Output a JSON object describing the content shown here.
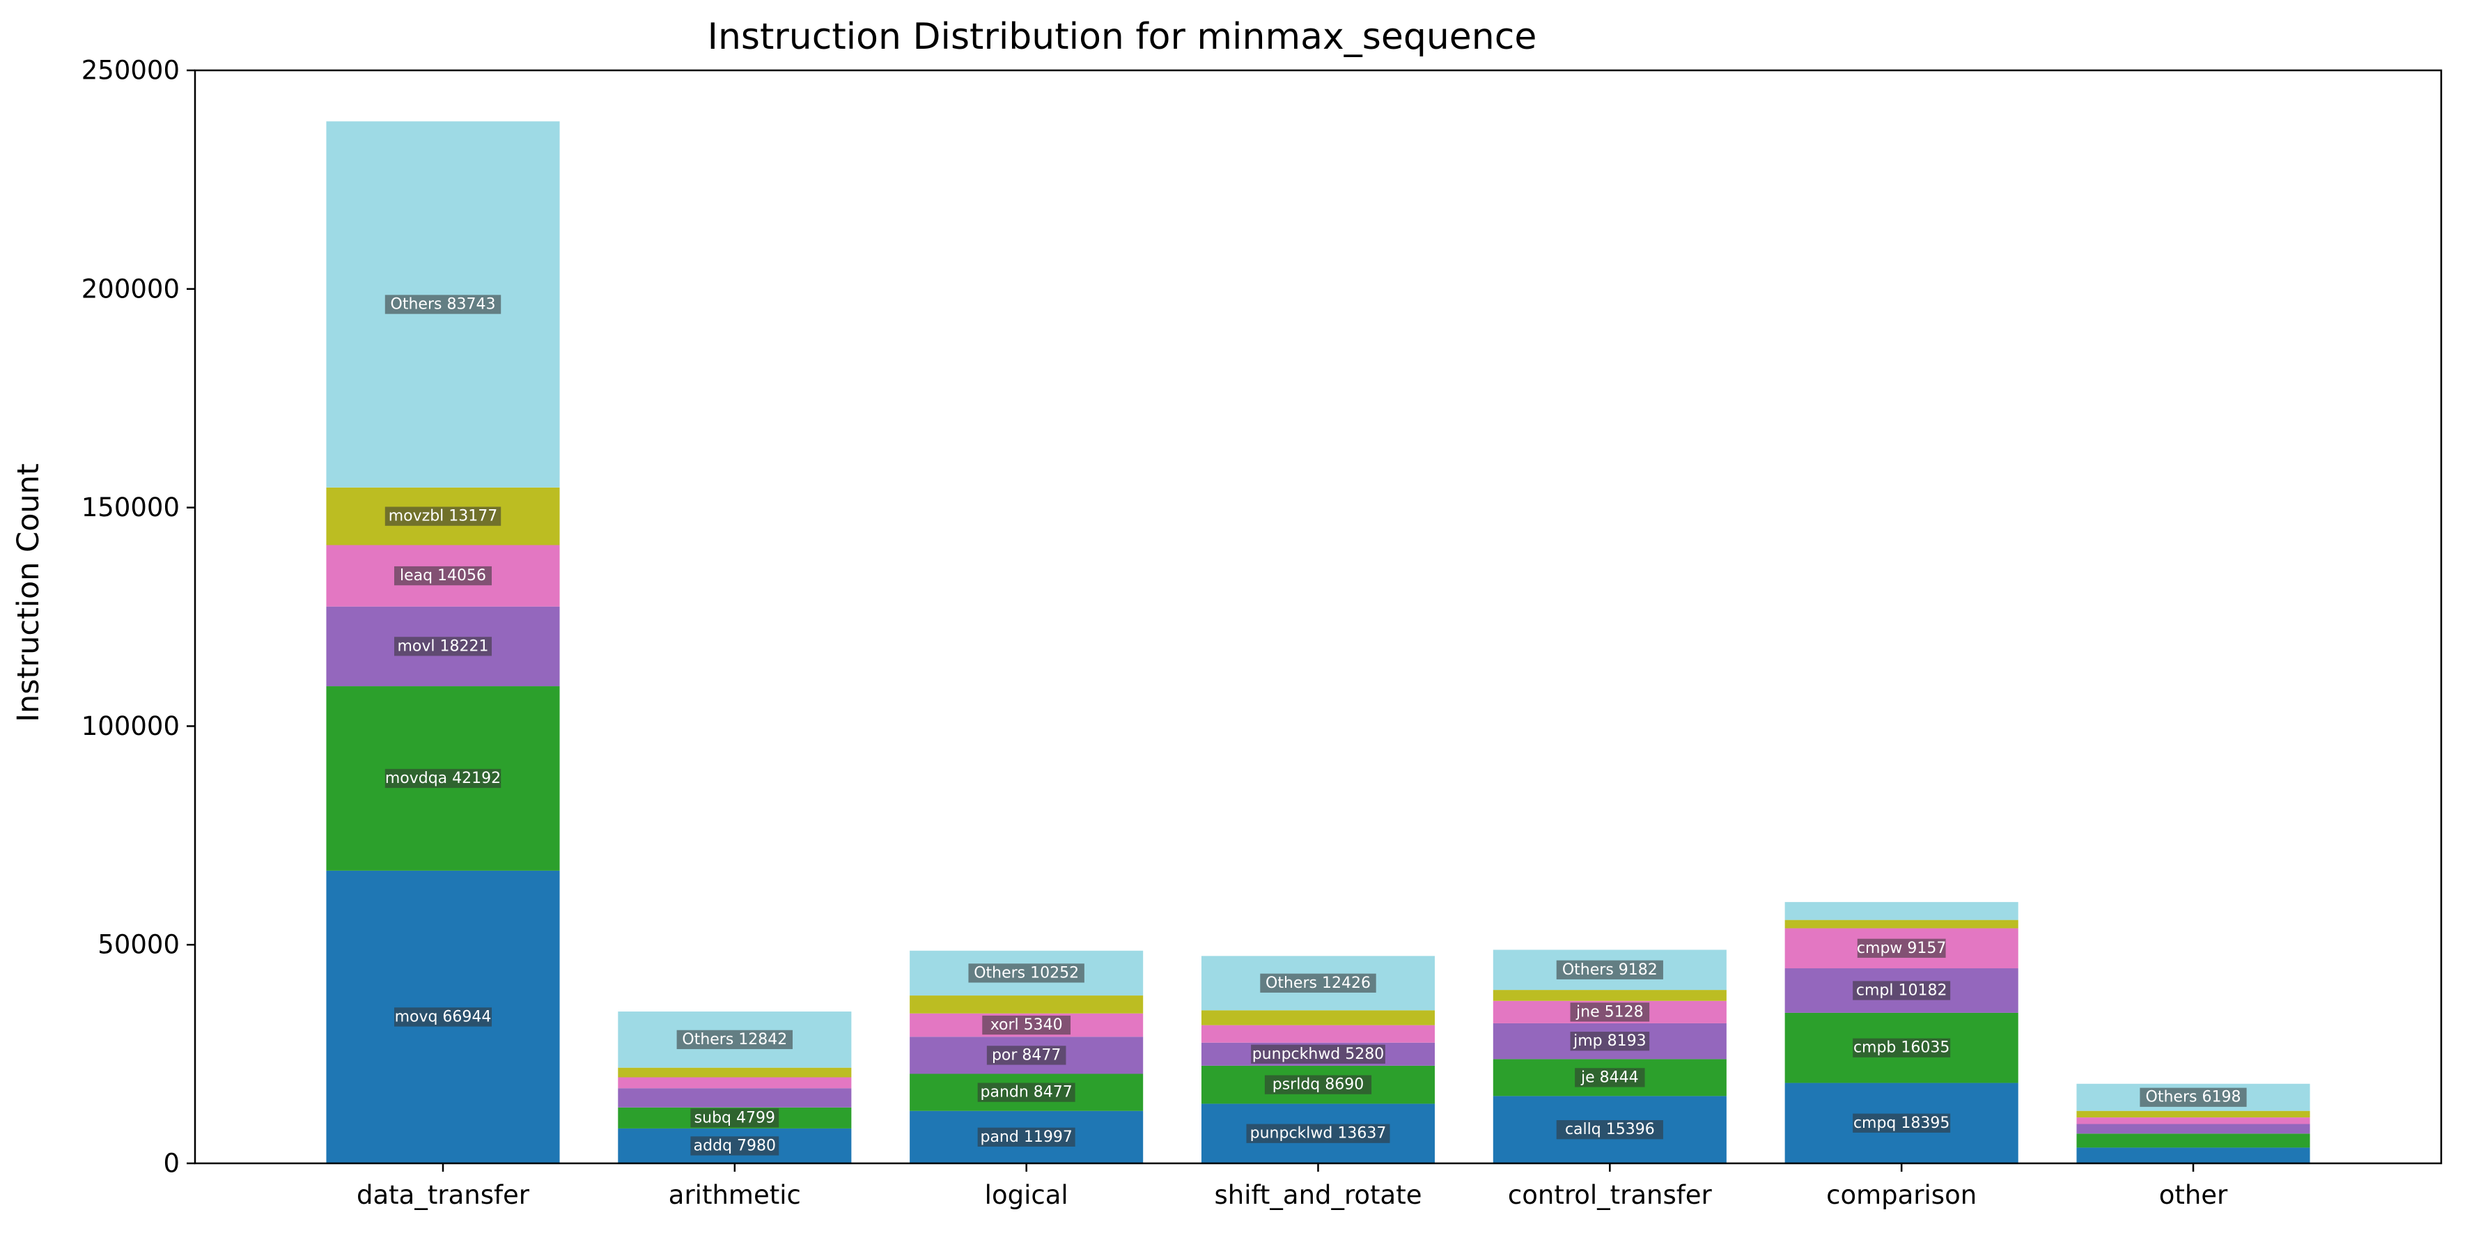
{
  "colors": {
    "segments": [
      "#1f77b4",
      "#2ca02c",
      "#9467bd",
      "#e377c2",
      "#bcbd22",
      "#9edae5"
    ],
    "label_box": "#333333",
    "axis": "#000000"
  },
  "chart_data": {
    "type": "bar",
    "stacked": true,
    "title": "Instruction Distribution for minmax_sequence",
    "xlabel": "",
    "ylabel": "Instruction Count",
    "ylim": [
      0,
      250000
    ],
    "yticks": [
      0,
      50000,
      100000,
      150000,
      200000,
      250000
    ],
    "ytick_labels": [
      "0",
      "50000",
      "100000",
      "150000",
      "200000",
      "250000"
    ],
    "grid": false,
    "legend": "none",
    "categories": [
      "data_transfer",
      "arithmetic",
      "logical",
      "shift_and_rotate",
      "control_transfer",
      "comparison",
      "other"
    ],
    "stacks": [
      [
        {
          "value": 66944,
          "label": "movq 66944"
        },
        {
          "value": 42192,
          "label": "movdqa 42192"
        },
        {
          "value": 18221,
          "label": "movl 18221"
        },
        {
          "value": 14056,
          "label": "leaq 14056"
        },
        {
          "value": 13177,
          "label": "movzbl 13177"
        },
        {
          "value": 83743,
          "label": "Others 83743"
        }
      ],
      [
        {
          "value": 7980,
          "label": "addq 7980"
        },
        {
          "value": 4799,
          "label": "subq 4799"
        },
        {
          "value": 4400,
          "label": ""
        },
        {
          "value": 2500,
          "label": ""
        },
        {
          "value": 2200,
          "label": ""
        },
        {
          "value": 12842,
          "label": "Others 12842"
        }
      ],
      [
        {
          "value": 11997,
          "label": "pand 11997"
        },
        {
          "value": 8477,
          "label": "pandn 8477"
        },
        {
          "value": 8477,
          "label": "por 8477"
        },
        {
          "value": 5340,
          "label": "xorl 5340"
        },
        {
          "value": 4100,
          "label": ""
        },
        {
          "value": 10252,
          "label": "Others 10252"
        }
      ],
      [
        {
          "value": 13637,
          "label": "punpcklwd 13637"
        },
        {
          "value": 8690,
          "label": "psrldq 8690"
        },
        {
          "value": 5280,
          "label": "punpckhwd 5280"
        },
        {
          "value": 4000,
          "label": ""
        },
        {
          "value": 3400,
          "label": ""
        },
        {
          "value": 12426,
          "label": "Others 12426"
        }
      ],
      [
        {
          "value": 15396,
          "label": "callq 15396"
        },
        {
          "value": 8444,
          "label": "je 8444"
        },
        {
          "value": 8193,
          "label": "jmp 8193"
        },
        {
          "value": 5128,
          "label": "jne 5128"
        },
        {
          "value": 2500,
          "label": ""
        },
        {
          "value": 9182,
          "label": "Others 9182"
        }
      ],
      [
        {
          "value": 18395,
          "label": "cmpq 18395"
        },
        {
          "value": 16035,
          "label": "cmpb 16035"
        },
        {
          "value": 10182,
          "label": "cmpl 10182"
        },
        {
          "value": 9157,
          "label": "cmpw 9157"
        },
        {
          "value": 1900,
          "label": ""
        },
        {
          "value": 4100,
          "label": ""
        }
      ],
      [
        {
          "value": 3600,
          "label": ""
        },
        {
          "value": 3200,
          "label": ""
        },
        {
          "value": 2200,
          "label": ""
        },
        {
          "value": 1500,
          "label": ""
        },
        {
          "value": 1500,
          "label": ""
        },
        {
          "value": 6198,
          "label": "Others 6198"
        }
      ]
    ]
  }
}
